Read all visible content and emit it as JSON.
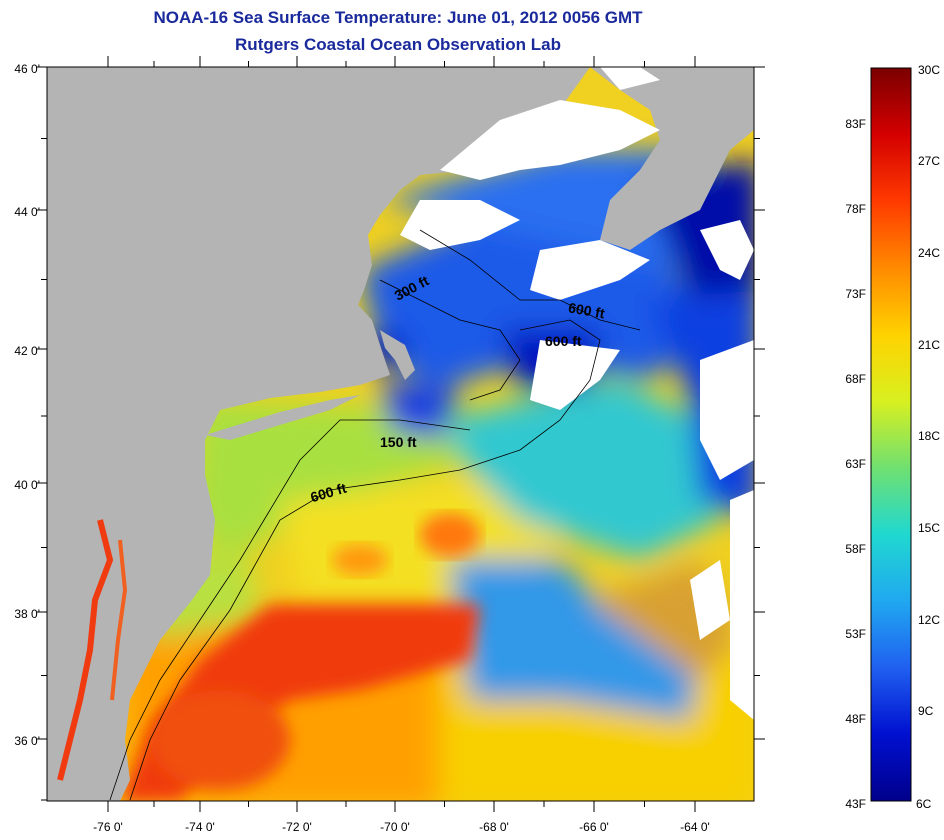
{
  "title": {
    "line1": "NOAA-16 Sea Surface Temperature:  June 01, 2012 0056 GMT",
    "line2": "Rutgers Coastal Ocean Observation Lab"
  },
  "map": {
    "lat_labels": [
      "46 0'",
      "44 0'",
      "42 0'",
      "40 0'",
      "38 0'",
      "36 0'"
    ],
    "lon_labels": [
      "-76 0'",
      "-74 0'",
      "-72 0'",
      "-70 0'",
      "-68 0'",
      "-66 0'",
      "-64 0'"
    ],
    "contour_labels": [
      "300 ft",
      "600 ft",
      "600 ft",
      "150 ft",
      "600 ft"
    ],
    "colors": {
      "land": "#b4b4b4",
      "cloud": "#ffffff"
    }
  },
  "colorbar": {
    "f_labels": [
      "83F",
      "78F",
      "73F",
      "68F",
      "63F",
      "58F",
      "53F",
      "48F",
      "43F"
    ],
    "c_labels": [
      "30C",
      "27C",
      "24C",
      "21C",
      "18C",
      "15C",
      "12C",
      "9C",
      "6C"
    ],
    "gradient": [
      "#7a0000",
      "#d40000",
      "#ff3a00",
      "#ff8a00",
      "#ffd200",
      "#d8f020",
      "#70e070",
      "#20d8d0",
      "#20a8f0",
      "#2060f0",
      "#0010d0",
      "#00008a"
    ]
  }
}
